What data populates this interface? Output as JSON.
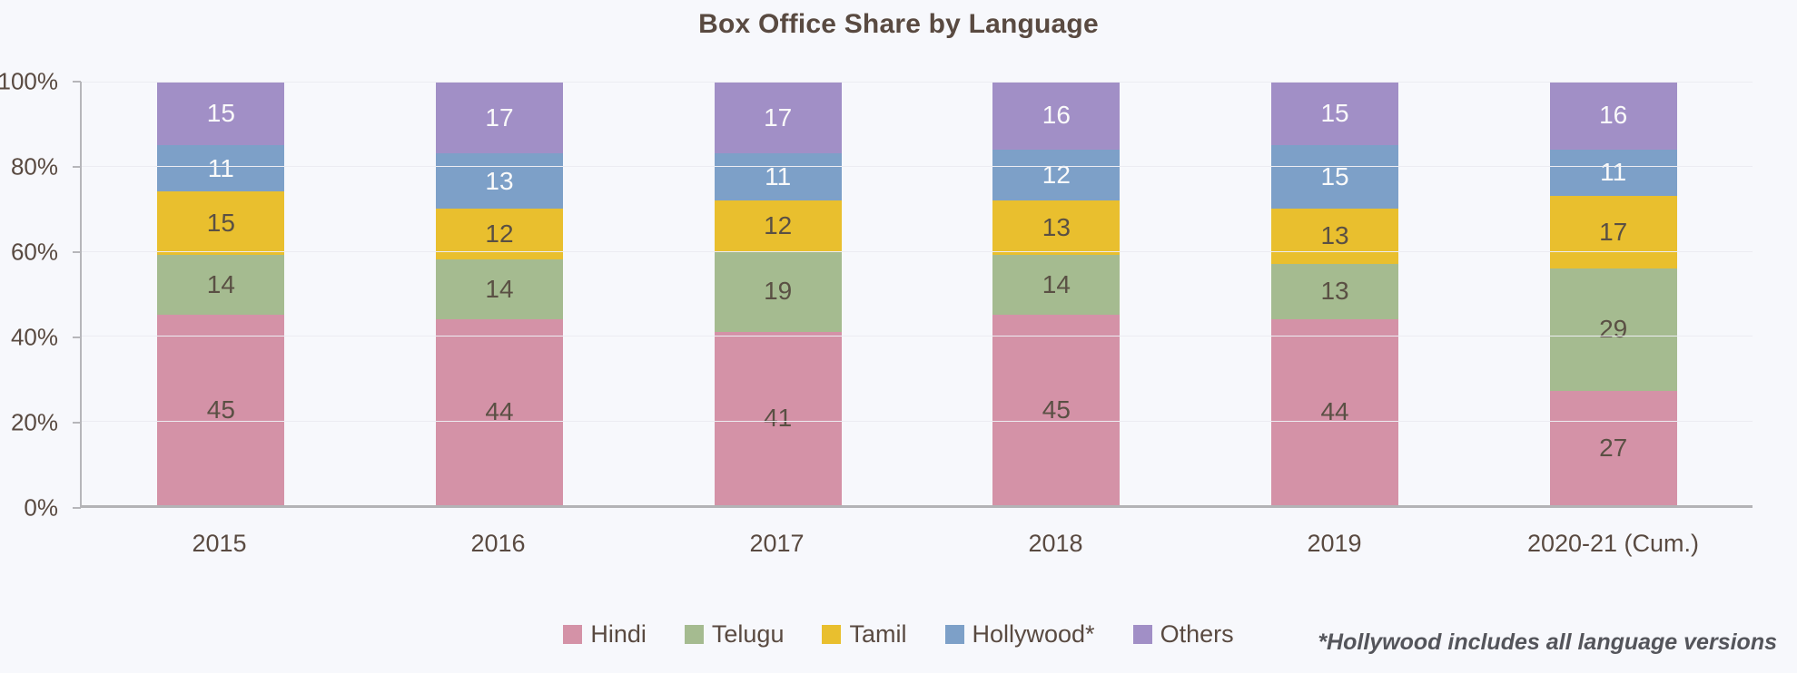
{
  "title": "Box Office Share by Language",
  "footnote": "*Hollywood includes all language versions",
  "colors": {
    "background": "#f7f8fc",
    "text_brown": "#594a41",
    "grid_line": "#ececf2",
    "axis_line": "#b3b3b6",
    "footnote_text": "#54555b"
  },
  "chart_data": {
    "type": "bar",
    "stacked": true,
    "unit": "percent",
    "title": "Box Office Share by Language",
    "categories": [
      "2015",
      "2016",
      "2017",
      "2018",
      "2019",
      "2020-21 (Cum.)"
    ],
    "series": [
      {
        "name": "Hindi",
        "color": "#d492a7",
        "label_color": "#5a5044",
        "values": [
          45,
          44,
          41,
          45,
          44,
          27
        ]
      },
      {
        "name": "Telugu",
        "color": "#a5bb90",
        "label_color": "#5a5044",
        "values": [
          14,
          14,
          19,
          14,
          13,
          29
        ]
      },
      {
        "name": "Tamil",
        "color": "#e9bf2e",
        "label_color": "#5a5044",
        "values": [
          15,
          12,
          12,
          13,
          13,
          17
        ]
      },
      {
        "name": "Hollywood*",
        "color": "#7da0c8",
        "label_color": "#fafafa",
        "values": [
          11,
          13,
          11,
          12,
          15,
          11
        ]
      },
      {
        "name": "Others",
        "color": "#a18fc6",
        "label_color": "#fafafa",
        "values": [
          15,
          17,
          17,
          16,
          15,
          16
        ]
      }
    ],
    "stack_order": "bottom-to-top follows series order",
    "y_ticks": [
      0,
      20,
      40,
      60,
      80,
      100
    ],
    "y_tick_labels": [
      "0%",
      "20%",
      "40%",
      "60%",
      "80%",
      "100%"
    ],
    "ylim": [
      0,
      100
    ],
    "grid": "horizontal",
    "legend_position": "bottom-center"
  }
}
